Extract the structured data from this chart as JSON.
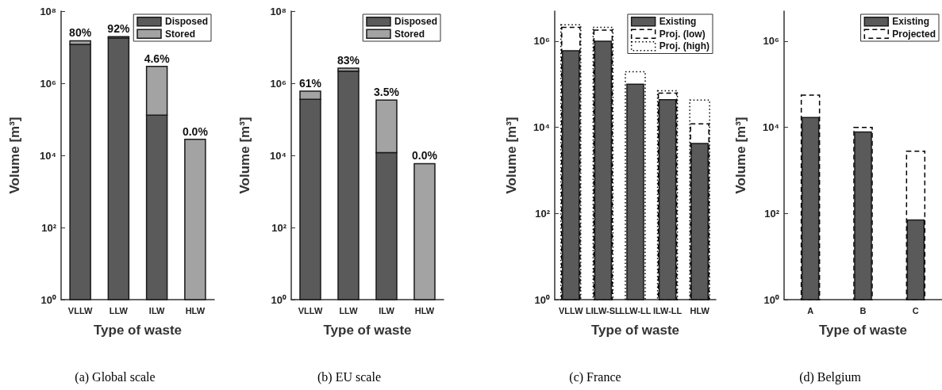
{
  "chart_data": [
    {
      "type": "bar",
      "title": "(a) Global scale",
      "xlabel": "Type of waste",
      "ylabel": "Volume [m³]",
      "categories": [
        "VLLW",
        "LLW",
        "ILW",
        "HLW"
      ],
      "stacked": true,
      "log": "y",
      "ylim": [
        1,
        100000000
      ],
      "yticks": [
        {
          "value": 1,
          "label": "10⁰"
        },
        {
          "value": 100,
          "label": "10²"
        },
        {
          "value": 10000,
          "label": "10⁴"
        },
        {
          "value": 1000000,
          "label": "10⁶"
        },
        {
          "value": 100000000,
          "label": "10⁸"
        }
      ],
      "legend": "top right",
      "annotations": [
        {
          "text": "80%",
          "x": "VLLW",
          "y": 15000000
        },
        {
          "text": "92%",
          "x": "LLW",
          "y": 19600000
        },
        {
          "text": "4.6%",
          "x": "ILW",
          "y": 2930000
        },
        {
          "text": "0.0%",
          "x": "HLW",
          "y": 28000
        }
      ],
      "series": [
        {
          "name": "Disposed",
          "color": "#5a5a5a",
          "values": [
            12000000,
            18000000,
            130000,
            null
          ]
        },
        {
          "name": "Stored",
          "color": "#a3a3a3",
          "values": [
            3000000,
            1600000,
            2800000,
            28000
          ]
        }
      ]
    },
    {
      "type": "bar",
      "title": "(b) EU scale",
      "xlabel": "Type of waste",
      "ylabel": "Volume [m³]",
      "categories": [
        "VLLW",
        "LLW",
        "ILW",
        "HLW"
      ],
      "stacked": true,
      "log": "y",
      "ylim": [
        1,
        100000000
      ],
      "yticks": [
        {
          "value": 1,
          "label": "10⁰"
        },
        {
          "value": 100,
          "label": "10²"
        },
        {
          "value": 10000,
          "label": "10⁴"
        },
        {
          "value": 1000000,
          "label": "10⁶"
        },
        {
          "value": 100000000,
          "label": "10⁸"
        }
      ],
      "legend": "top right",
      "annotations": [
        {
          "text": "61%",
          "x": "VLLW",
          "y": 600000
        },
        {
          "text": "83%",
          "x": "LLW",
          "y": 2600000
        },
        {
          "text": "3.5%",
          "x": "ILW",
          "y": 342000
        },
        {
          "text": "0.0%",
          "x": "HLW",
          "y": 5900
        }
      ],
      "series": [
        {
          "name": "Disposed",
          "color": "#5a5a5a",
          "values": [
            360000,
            2150000,
            12000,
            null
          ]
        },
        {
          "name": "Stored",
          "color": "#a3a3a3",
          "values": [
            240000,
            450000,
            330000,
            5900
          ]
        }
      ]
    },
    {
      "type": "bar",
      "title": "(c) France",
      "xlabel": "Type of waste",
      "ylabel": "Volume [m³]",
      "categories": [
        "VLLW",
        "LILW-SL",
        "LLW-LL",
        "ILW-LL",
        "HLW"
      ],
      "log": "y",
      "ylim": [
        1,
        5000000
      ],
      "yticks": [
        {
          "value": 1,
          "label": "10⁰"
        },
        {
          "value": 100,
          "label": "10²"
        },
        {
          "value": 10000,
          "label": "10⁴"
        },
        {
          "value": 1000000,
          "label": "10⁶"
        }
      ],
      "legend": "top right",
      "series": [
        {
          "name": "Existing",
          "color": "#5a5a5a",
          "values": [
            600000,
            1000000,
            100000,
            44000,
            4200
          ]
        },
        {
          "name": "Proj. (low)",
          "color": "#000000",
          "line_style": "dashed",
          "values": [
            2100000,
            1800000,
            null,
            62000,
            12000
          ]
        },
        {
          "name": "Proj. (high)",
          "color": "#000000",
          "line_style": "dotted",
          "values": [
            2400000,
            2100000,
            195000,
            71000,
            43000
          ]
        }
      ]
    },
    {
      "type": "bar",
      "title": "(d) Belgium",
      "xlabel": "Type of waste",
      "ylabel": "Volume [m³]",
      "categories": [
        "A",
        "B",
        "C"
      ],
      "log": "y",
      "ylim": [
        1,
        5000000
      ],
      "yticks": [
        {
          "value": 1,
          "label": "10⁰"
        },
        {
          "value": 100,
          "label": "10²"
        },
        {
          "value": 10000,
          "label": "10⁴"
        },
        {
          "value": 1000000,
          "label": "10⁶"
        }
      ],
      "legend": "top right",
      "series": [
        {
          "name": "Existing",
          "color": "#5a5a5a",
          "values": [
            17000,
            7800,
            71
          ]
        },
        {
          "name": "Projected",
          "color": "#000000",
          "line_style": "dashed",
          "values": [
            56000,
            10000,
            2800
          ]
        }
      ]
    }
  ]
}
